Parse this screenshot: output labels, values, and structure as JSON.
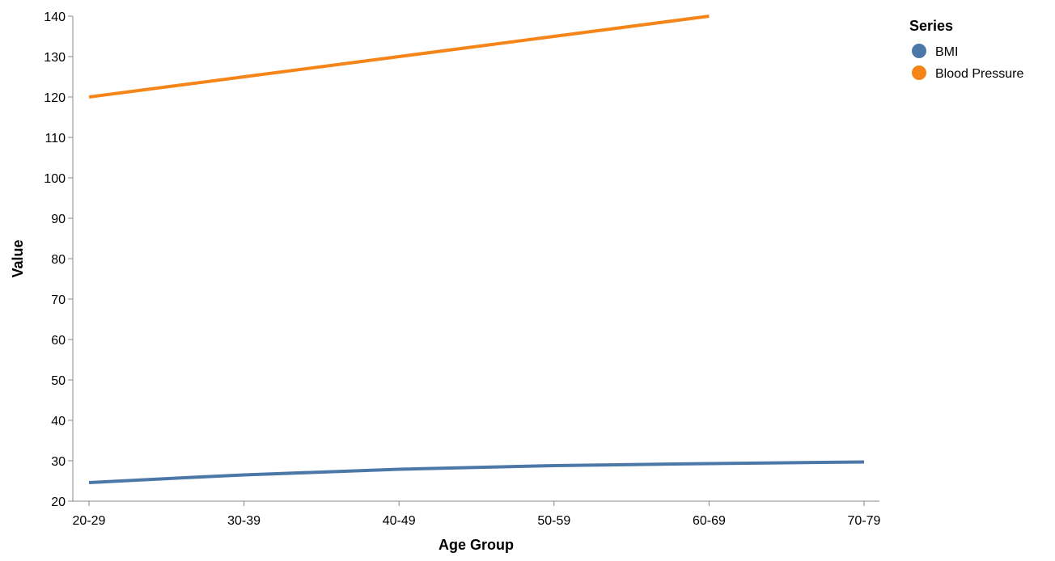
{
  "chart_data": {
    "type": "line",
    "x_label": "Age Group",
    "y_label": "Value",
    "categories": [
      "20-29",
      "30-39",
      "40-49",
      "50-59",
      "60-69",
      "70-79"
    ],
    "y_domain": [
      20,
      140
    ],
    "y_ticks": [
      20,
      30,
      40,
      50,
      60,
      70,
      80,
      90,
      100,
      110,
      120,
      130,
      140
    ],
    "grid": false,
    "legend": {
      "title": "Series",
      "placement": "top-right"
    },
    "series": [
      {
        "name": "BMI",
        "color": "#4c78a8",
        "values": [
          24.6,
          26.5,
          27.9,
          28.8,
          29.3,
          29.7
        ]
      },
      {
        "name": "Blood Pressure",
        "color": "#f58518",
        "values": [
          120,
          125,
          130,
          135,
          140,
          null
        ]
      }
    ]
  }
}
